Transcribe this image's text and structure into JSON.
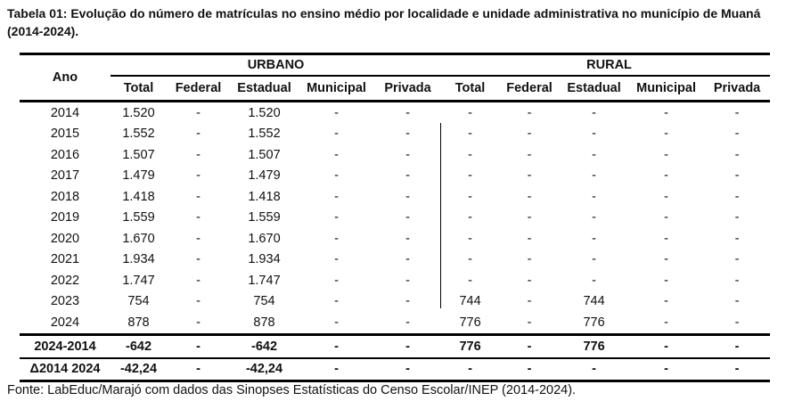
{
  "title": "Tabela 01: Evolução do número de matrículas no ensino médio por localidade e unidade administrativa no município de Muaná (2014-2024).",
  "header": {
    "ano": "Ano",
    "groups": [
      "URBANO",
      "RURAL"
    ],
    "columns": [
      "Total",
      "Federal",
      "Estadual",
      "Municipal",
      "Privada",
      "Total",
      "Federal",
      "Estadual",
      "Municipal",
      "Privada"
    ]
  },
  "rows": [
    [
      "2014",
      "1.520",
      "-",
      "1.520",
      "-",
      "-",
      "-",
      "-",
      "-",
      "-",
      "-"
    ],
    [
      "2015",
      "1.552",
      "-",
      "1.552",
      "-",
      "-",
      "-",
      "-",
      "-",
      "-",
      "-"
    ],
    [
      "2016",
      "1.507",
      "-",
      "1.507",
      "-",
      "-",
      "-",
      "-",
      "-",
      "-",
      "-"
    ],
    [
      "2017",
      "1.479",
      "-",
      "1.479",
      "-",
      "-",
      "-",
      "-",
      "-",
      "-",
      "-"
    ],
    [
      "2018",
      "1.418",
      "-",
      "1.418",
      "-",
      "-",
      "-",
      "-",
      "-",
      "-",
      "-"
    ],
    [
      "2019",
      "1.559",
      "-",
      "1.559",
      "-",
      "-",
      "-",
      "-",
      "-",
      "-",
      "-"
    ],
    [
      "2020",
      "1.670",
      "-",
      "1.670",
      "-",
      "-",
      "-",
      "-",
      "-",
      "-",
      "-"
    ],
    [
      "2021",
      "1.934",
      "-",
      "1.934",
      "-",
      "-",
      "-",
      "-",
      "-",
      "-",
      "-"
    ],
    [
      "2022",
      "1.747",
      "-",
      "1.747",
      "-",
      "-",
      "-",
      "-",
      "-",
      "-",
      "-"
    ],
    [
      "2023",
      "754",
      "-",
      "754",
      "-",
      "-",
      "744",
      "-",
      "744",
      "-",
      "-"
    ],
    [
      "2024",
      "878",
      "-",
      "878",
      "-",
      "-",
      "776",
      "-",
      "776",
      "-",
      "-"
    ]
  ],
  "difference_row": [
    "2024-2014",
    "-642",
    "-",
    "-642",
    "-",
    "-",
    "776",
    "-",
    "776",
    "-",
    "-"
  ],
  "delta_row": [
    "Δ2014 2024",
    "-42,24",
    "-",
    "-42,24",
    "-",
    "-",
    "-",
    "-",
    "-",
    "-",
    "-"
  ],
  "source": "Fonte: LabEduc/Marajó com dados das Sinopses Estatísticas do Censo Escolar/INEP (2014-2024)."
}
